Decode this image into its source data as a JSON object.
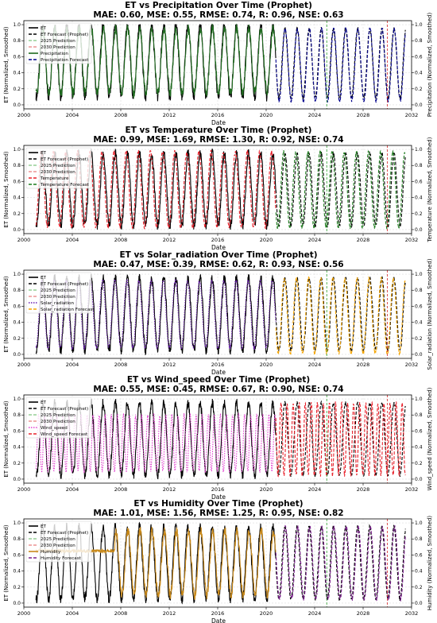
{
  "chart_data": [
    {
      "type": "line",
      "title": "ET vs Precipitation Over Time (Prophet)",
      "subtitle": "MAE: 0.60, MSE: 0.55, RMSE: 0.74, R: 0.96, NSE: 0.63",
      "xlabel": "Date",
      "ylabel_left": "ET (Normalized, Smoothed)",
      "ylabel_right": "Precipitation (Normalized, Smoothed)",
      "x_ticks": [
        "2000",
        "2004",
        "2008",
        "2012",
        "2016",
        "2020",
        "2024",
        "2028",
        "2032"
      ],
      "y_ticks": [
        "0.0",
        "0.2",
        "0.4",
        "0.6",
        "0.8",
        "1.0"
      ],
      "xlim": [
        2000,
        2032
      ],
      "ylim": [
        -0.05,
        1.05
      ],
      "grid": true,
      "legend_position": "top-left",
      "legend": [
        "ET",
        "ET Forecast (Prophet)",
        "2025 Prediction",
        "2030 Prediction",
        "Precipitation",
        "Precipitation Forecast"
      ],
      "prediction_lines": [
        2025,
        2030
      ],
      "series": [
        {
          "name": "ET",
          "color": "#000000",
          "dash": "solid",
          "x_range": [
            2001,
            2020.8
          ],
          "period": 1,
          "base": 0.55,
          "amp": 0.45,
          "phase": 0.3
        },
        {
          "name": "ET Forecast (Prophet)",
          "color": "#000000",
          "dash": "dashed",
          "x_range": [
            2020.8,
            2031.5
          ],
          "period": 1,
          "base": 0.52,
          "amp": 0.43,
          "phase": 0.3
        },
        {
          "name": "Precipitation",
          "color": "#1f6b1f",
          "dash": "solid",
          "x_range": [
            2001,
            2020.8
          ],
          "period": 1,
          "base": 0.55,
          "amp": 0.4,
          "phase": 0.32
        },
        {
          "name": "Precipitation Forecast",
          "color": "#00008b",
          "dash": "dashed",
          "x_range": [
            2020.8,
            2031.5
          ],
          "period": 1,
          "base": 0.5,
          "amp": 0.45,
          "phase": 0.32
        }
      ]
    },
    {
      "type": "line",
      "title": "ET vs Temperature Over Time (Prophet)",
      "subtitle": "MAE: 0.99, MSE: 1.69, RMSE: 1.30, R: 0.92, NSE: 0.74",
      "xlabel": "Date",
      "ylabel_left": "ET (Normalized, Smoothed)",
      "ylabel_right": "Temperature (Normalized, Smoothed)",
      "x_ticks": [
        "2000",
        "2004",
        "2008",
        "2012",
        "2016",
        "2020",
        "2024",
        "2028",
        "2032"
      ],
      "y_ticks": [
        "0.0",
        "0.2",
        "0.4",
        "0.6",
        "0.8",
        "1.0"
      ],
      "xlim": [
        2000,
        2032
      ],
      "ylim": [
        -0.05,
        1.05
      ],
      "grid": true,
      "legend_position": "top-left",
      "legend": [
        "ET",
        "ET Forecast (Prophet)",
        "2025 Prediction",
        "2030 Prediction",
        "Temperature",
        "Temperature Forecast"
      ],
      "prediction_lines": [
        2025,
        2030
      ],
      "series": [
        {
          "name": "ET",
          "color": "#000000",
          "dash": "solid",
          "x_range": [
            2001,
            2020.8
          ],
          "period": 1,
          "base": 0.5,
          "amp": 0.45,
          "phase": 0.3
        },
        {
          "name": "ET Forecast (Prophet)",
          "color": "#000000",
          "dash": "dashed",
          "x_range": [
            2020.8,
            2031.5
          ],
          "period": 1,
          "base": 0.5,
          "amp": 0.45,
          "phase": 0.3
        },
        {
          "name": "Temperature",
          "color": "#e8202a",
          "dash": "dashed",
          "x_range": [
            2001,
            2020.8
          ],
          "period": 1,
          "base": 0.5,
          "amp": 0.47,
          "phase": 0.2
        },
        {
          "name": "Temperature Forecast",
          "color": "#1a7a1a",
          "dash": "dashed",
          "x_range": [
            2020.8,
            2031.5
          ],
          "period": 1,
          "base": 0.5,
          "amp": 0.47,
          "phase": 0.2
        }
      ]
    },
    {
      "type": "line",
      "title": "ET vs Solar_radiation Over Time (Prophet)",
      "subtitle": "MAE: 0.47, MSE: 0.39, RMSE: 0.62, R: 0.93, NSE: 0.56",
      "xlabel": "Date",
      "ylabel_left": "ET (Normalized, Smoothed)",
      "ylabel_right": "Solar_radiation (Normalized, Smoothed)",
      "x_ticks": [
        "2000",
        "2004",
        "2008",
        "2012",
        "2016",
        "2020",
        "2024",
        "2028",
        "2032"
      ],
      "y_ticks": [
        "0.0",
        "0.2",
        "0.4",
        "0.6",
        "0.8",
        "1.0"
      ],
      "xlim": [
        2000,
        2032
      ],
      "ylim": [
        -0.05,
        1.05
      ],
      "grid": true,
      "legend_position": "top-left",
      "legend": [
        "ET",
        "ET Forecast (Prophet)",
        "2025 Prediction",
        "2030 Prediction",
        "Solar_radiation",
        "Solar_radiation Forecast"
      ],
      "prediction_lines": [
        2025,
        2030
      ],
      "series": [
        {
          "name": "ET",
          "color": "#000000",
          "dash": "solid",
          "x_range": [
            2001,
            2020.8
          ],
          "period": 1,
          "base": 0.5,
          "amp": 0.45,
          "phase": 0.3
        },
        {
          "name": "ET Forecast (Prophet)",
          "color": "#000000",
          "dash": "dashed",
          "x_range": [
            2020.8,
            2031.5
          ],
          "period": 1,
          "base": 0.5,
          "amp": 0.45,
          "phase": 0.3
        },
        {
          "name": "Solar_radiation",
          "color": "#6a1fb0",
          "dash": "dotted",
          "x_range": [
            2001,
            2020.8
          ],
          "period": 1,
          "base": 0.5,
          "amp": 0.42,
          "phase": 0.25
        },
        {
          "name": "Solar_radiation Forecast",
          "color": "#f5a500",
          "dash": "dashed",
          "x_range": [
            2020.8,
            2031.5
          ],
          "period": 1,
          "base": 0.48,
          "amp": 0.47,
          "phase": 0.25
        }
      ]
    },
    {
      "type": "line",
      "title": "ET vs Wind_speed Over Time (Prophet)",
      "subtitle": "MAE: 0.55, MSE: 0.45, RMSE: 0.67, R: 0.90, NSE: 0.74",
      "xlabel": "Date",
      "ylabel_left": "ET (Normalized, Smoothed)",
      "ylabel_right": "Wind_speed (Normalized, Smoothed)",
      "x_ticks": [
        "2000",
        "2004",
        "2008",
        "2012",
        "2016",
        "2020",
        "2024",
        "2028",
        "2032"
      ],
      "y_ticks": [
        "0.0",
        "0.2",
        "0.4",
        "0.6",
        "0.8",
        "1.0"
      ],
      "xlim": [
        2000,
        2032
      ],
      "ylim": [
        -0.05,
        1.05
      ],
      "grid": true,
      "legend_position": "top-left",
      "legend": [
        "ET",
        "ET Forecast (Prophet)",
        "2025 Prediction",
        "2030 Prediction",
        "Wind_speed",
        "Wind_speed Forecast"
      ],
      "prediction_lines": [
        2025,
        2030
      ],
      "series": [
        {
          "name": "ET",
          "color": "#000000",
          "dash": "solid",
          "x_range": [
            2001,
            2020.8
          ],
          "period": 1,
          "base": 0.5,
          "amp": 0.45,
          "phase": 0.3
        },
        {
          "name": "ET Forecast (Prophet)",
          "color": "#000000",
          "dash": "dashed",
          "x_range": [
            2020.8,
            2031.5
          ],
          "period": 1,
          "base": 0.5,
          "amp": 0.45,
          "phase": 0.3
        },
        {
          "name": "Wind_speed",
          "color": "#e23fd0",
          "dash": "dotted",
          "x_range": [
            2001,
            2020.8
          ],
          "period": 0.5,
          "base": 0.45,
          "amp": 0.35,
          "phase": 0.1
        },
        {
          "name": "Wind_speed Forecast",
          "color": "#e8202a",
          "dash": "dashed",
          "x_range": [
            2020.8,
            2031.5
          ],
          "period": 0.5,
          "base": 0.5,
          "amp": 0.45,
          "phase": 0.1
        }
      ]
    },
    {
      "type": "line",
      "title": "ET vs Humidity Over Time (Prophet)",
      "subtitle": "MAE: 1.01, MSE: 1.56, RMSE: 1.25, R: 0.95, NSE: 0.82",
      "xlabel": "Date",
      "ylabel_left": "ET (Normalized, Smoothed)",
      "ylabel_right": "Humidity (Normalized, Smoothed)",
      "x_ticks": [
        "2000",
        "2004",
        "2008",
        "2012",
        "2016",
        "2020",
        "2024",
        "2028",
        "2032"
      ],
      "y_ticks": [
        "0.0",
        "0.2",
        "0.4",
        "0.6",
        "0.8",
        "1.0"
      ],
      "xlim": [
        2000,
        2032
      ],
      "ylim": [
        -0.05,
        1.05
      ],
      "grid": true,
      "legend_position": "top-left",
      "legend": [
        "ET",
        "ET Forecast (Prophet)",
        "2025 Prediction",
        "2030 Prediction",
        "Humidity",
        "Humidity Forecast"
      ],
      "prediction_lines": [
        2025,
        2030
      ],
      "series": [
        {
          "name": "ET",
          "color": "#000000",
          "dash": "solid",
          "x_range": [
            2001,
            2020.8
          ],
          "period": 1,
          "base": 0.5,
          "amp": 0.45,
          "phase": 0.3
        },
        {
          "name": "ET Forecast (Prophet)",
          "color": "#000000",
          "dash": "dashed",
          "x_range": [
            2020.8,
            2031.5
          ],
          "period": 1,
          "base": 0.5,
          "amp": 0.45,
          "phase": 0.3
        },
        {
          "name": "Humidity",
          "color": "#c8891a",
          "dash": "solid",
          "x_range": [
            2001,
            2020.8
          ],
          "period": 1,
          "base": 0.5,
          "amp": 0.4,
          "phase": 0.35,
          "flat_until": 2007.5,
          "flat_value": 0.65
        },
        {
          "name": "Humidity Forecast",
          "color": "#7a1f8c",
          "dash": "dashed",
          "x_range": [
            2020.8,
            2031.5
          ],
          "period": 1,
          "base": 0.5,
          "amp": 0.45,
          "phase": 0.35
        }
      ]
    }
  ],
  "colors": {
    "pred_2025": "#2ca02c",
    "pred_2030": "#d62728"
  }
}
